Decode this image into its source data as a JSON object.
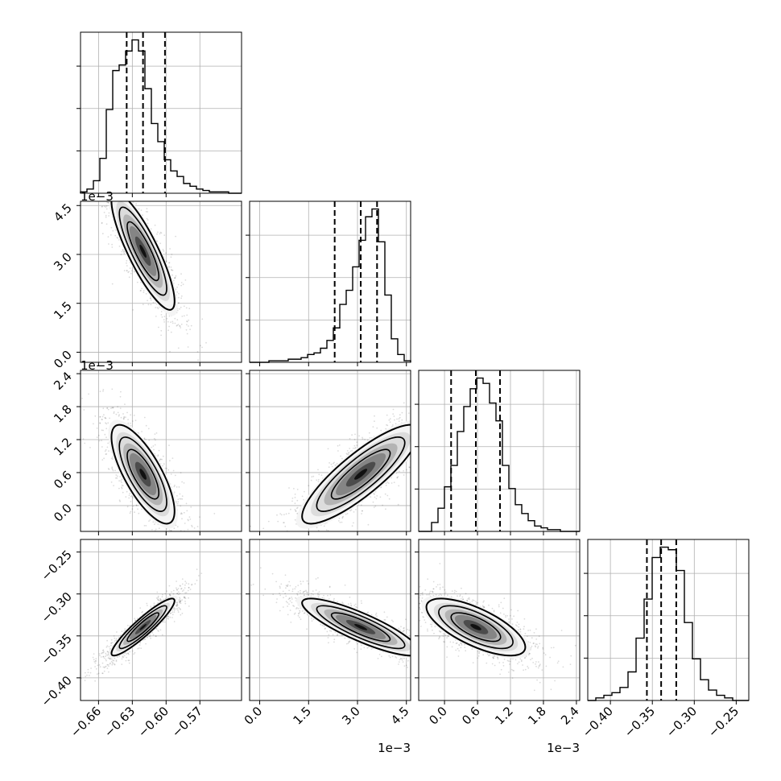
{
  "chart_data": {
    "type": "corner",
    "n_params": 4,
    "labels": [
      "",
      "",
      "",
      ""
    ],
    "grid": true,
    "offsets": [
      "",
      "1e−3",
      "1e−3",
      ""
    ],
    "ranges": [
      [
        -0.676,
        -0.533
      ],
      [
        -0.00031,
        0.00463
      ],
      [
        -0.00047,
        0.00246
      ],
      [
        -0.427,
        -0.235
      ]
    ],
    "ticks": [
      {
        "values": [
          -0.66,
          -0.63,
          -0.6,
          -0.57
        ],
        "labels": [
          "−0.66",
          "−0.63",
          "−0.60",
          "−0.57"
        ]
      },
      {
        "values": [
          0.0,
          0.0015,
          0.003,
          0.0045
        ],
        "labels": [
          "0.0",
          "1.5",
          "3.0",
          "4.5"
        ]
      },
      {
        "values": [
          0.0,
          0.0006,
          0.0012,
          0.0018,
          0.0024
        ],
        "labels": [
          "0.0",
          "0.6",
          "1.2",
          "1.8",
          "2.4"
        ]
      },
      {
        "values": [
          -0.4,
          -0.35,
          -0.3,
          -0.25
        ],
        "labels": [
          "−0.40",
          "−0.35",
          "−0.30",
          "−0.25"
        ]
      }
    ],
    "quantiles": [
      [
        -0.635,
        -0.6205,
        -0.601
      ],
      [
        0.0023,
        0.0031,
        0.0036
      ],
      [
        0.00012,
        0.00057,
        0.00101
      ],
      [
        -0.3565,
        -0.3395,
        -0.3215
      ]
    ],
    "histograms": [
      {
        "counts": [
          1,
          3,
          9,
          25,
          60,
          88,
          92,
          102,
          110,
          102,
          75,
          50,
          37,
          24,
          16,
          12,
          7,
          5,
          3,
          2,
          1,
          1,
          1,
          0,
          0
        ]
      },
      {
        "counts": [
          0,
          0,
          0,
          1,
          1,
          1,
          2,
          2,
          3,
          5,
          6,
          9,
          14,
          22,
          37,
          46,
          61,
          78,
          93,
          98,
          77,
          43,
          15,
          5,
          1
        ]
      },
      {
        "counts": [
          0,
          0,
          5,
          13,
          25,
          37,
          56,
          70,
          80,
          86,
          83,
          72,
          62,
          37,
          24,
          15,
          10,
          6,
          3,
          2,
          1,
          1,
          0,
          0,
          0
        ]
      },
      {
        "counts": [
          0,
          1,
          2,
          3,
          5,
          11,
          24,
          39,
          55,
          59,
          58,
          50,
          30,
          16,
          8,
          4,
          2,
          1,
          0,
          0
        ]
      }
    ],
    "pairs": [
      {
        "row": 1,
        "col": 0,
        "mean": [
          -0.6205,
          0.0031
        ],
        "std": [
          0.014,
          0.0009
        ],
        "corr": -0.85
      },
      {
        "row": 2,
        "col": 0,
        "mean": [
          -0.6205,
          0.00057
        ],
        "std": [
          0.014,
          0.00045
        ],
        "corr": -0.75
      },
      {
        "row": 2,
        "col": 1,
        "mean": [
          0.0031,
          0.00057
        ],
        "std": [
          0.0009,
          0.00045
        ],
        "corr": 0.85
      },
      {
        "row": 3,
        "col": 0,
        "mean": [
          -0.6205,
          -0.3395
        ],
        "std": [
          0.014,
          0.017
        ],
        "corr": 0.92
      },
      {
        "row": 3,
        "col": 1,
        "mean": [
          0.0031,
          -0.3395
        ],
        "std": [
          0.0009,
          0.017
        ],
        "corr": -0.85
      },
      {
        "row": 3,
        "col": 2,
        "mean": [
          0.00057,
          -0.3395
        ],
        "std": [
          0.00045,
          0.017
        ],
        "corr": -0.7
      }
    ],
    "contour_levels_sigma": [
      0.5,
      1.0,
      1.5,
      2.0
    ]
  }
}
